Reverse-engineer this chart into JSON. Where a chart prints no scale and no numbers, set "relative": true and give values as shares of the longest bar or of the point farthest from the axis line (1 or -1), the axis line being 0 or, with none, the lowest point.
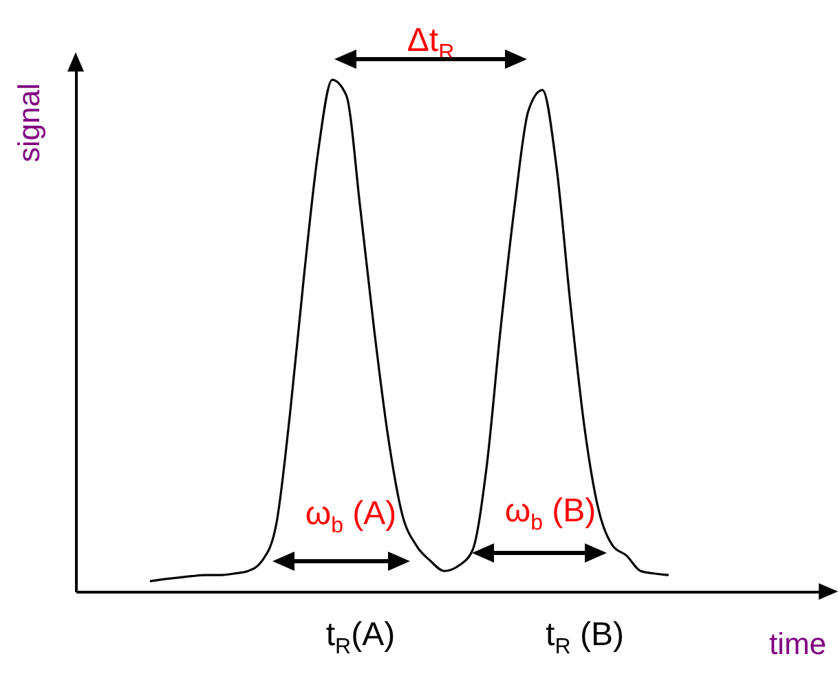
{
  "chart_data": {
    "type": "line",
    "relative": true,
    "xlabel": "time",
    "ylabel": "signal",
    "categories": [
      null,
      null,
      null,
      null,
      null,
      null,
      null,
      null,
      null,
      null,
      null,
      null,
      null,
      null,
      null,
      null,
      null,
      null,
      null,
      null,
      null,
      null,
      null,
      null,
      null,
      null,
      null,
      null,
      null,
      null,
      null,
      null,
      null,
      null,
      null,
      null,
      null,
      null
    ],
    "series": [
      {
        "color": "#000000",
        "values": [
          0.02,
          0.024,
          0.027,
          0.03,
          0.032,
          0.032,
          0.035,
          0.04,
          0.06,
          0.13,
          0.35,
          0.62,
          0.86,
          1,
          0.97,
          0.75,
          0.51,
          0.3,
          0.15,
          0.09,
          0.06,
          0.04,
          0.05,
          0.08,
          0.24,
          0.51,
          0.75,
          0.94,
          0.98,
          0.83,
          0.56,
          0.32,
          0.16,
          0.09,
          0.07,
          0.04,
          0.035,
          0.032
        ]
      }
    ],
    "annotations": [
      "Δt$_{R}$",
      "ω$_{b}$ (A)",
      "ω$_{b}$ (B)",
      "t$_{R}$(A)",
      "t$_{R}$ (B)"
    ]
  }
}
